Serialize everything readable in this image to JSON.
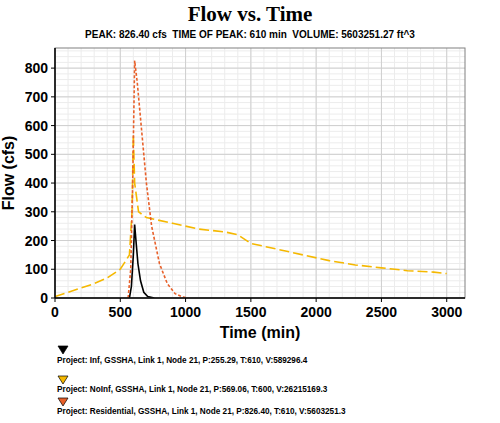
{
  "chart_data": {
    "type": "line",
    "title": "Flow vs. Time",
    "subtitle": "PEAK: 826.40 cfs  TIME OF PEAK: 610 min  VOLUME: 5603251.27 ft^3",
    "x_label": "Time (min)",
    "y_label": "Flow (cfs)",
    "xlim": [
      0,
      3140
    ],
    "ylim": [
      0,
      870
    ],
    "xticks": [
      0,
      500,
      1000,
      1500,
      2000,
      2500,
      3000
    ],
    "yticks": [
      0,
      100,
      200,
      300,
      400,
      500,
      600,
      700,
      800
    ],
    "grid": true,
    "legend": "bottom",
    "series": [
      {
        "name": "Project: Inf, GSSHA, Link 1, Node 21, P:255.29, T:610, V:589296.4",
        "color": "#000000",
        "line_style": "solid",
        "marker": "triangle",
        "x": [
          570,
          585,
          600,
          610,
          620,
          635,
          655,
          680,
          710,
          760
        ],
        "values": [
          0,
          40,
          150,
          255.29,
          200,
          120,
          60,
          20,
          5,
          0
        ]
      },
      {
        "name": "Project: NoInf, GSSHA, Link 1, Node 21, P:569.06, T:600, V:26215169.3",
        "color": "#f5b800",
        "line_style": "dashed",
        "marker": "triangle",
        "x": [
          0,
          100,
          200,
          300,
          400,
          500,
          570,
          590,
          600,
          610,
          640,
          700,
          900,
          1100,
          1300,
          1400,
          1500,
          1700,
          1900,
          2100,
          2300,
          2500,
          2700,
          2900,
          3000
        ],
        "values": [
          5,
          20,
          35,
          50,
          70,
          100,
          150,
          300,
          569.06,
          400,
          300,
          280,
          260,
          240,
          230,
          220,
          190,
          170,
          150,
          130,
          115,
          105,
          95,
          90,
          85
        ]
      },
      {
        "name": "Project: Residential, GSSHA, Link 1, Node 21, P:826.40, T:610, V:5603251.3",
        "color": "#e8602a",
        "line_style": "dotted",
        "marker": "triangle",
        "x": [
          560,
          580,
          595,
          610,
          630,
          660,
          700,
          740,
          800,
          860,
          920,
          980,
          1020
        ],
        "values": [
          0,
          100,
          400,
          826.4,
          750,
          600,
          400,
          250,
          120,
          50,
          15,
          3,
          0
        ]
      }
    ]
  }
}
